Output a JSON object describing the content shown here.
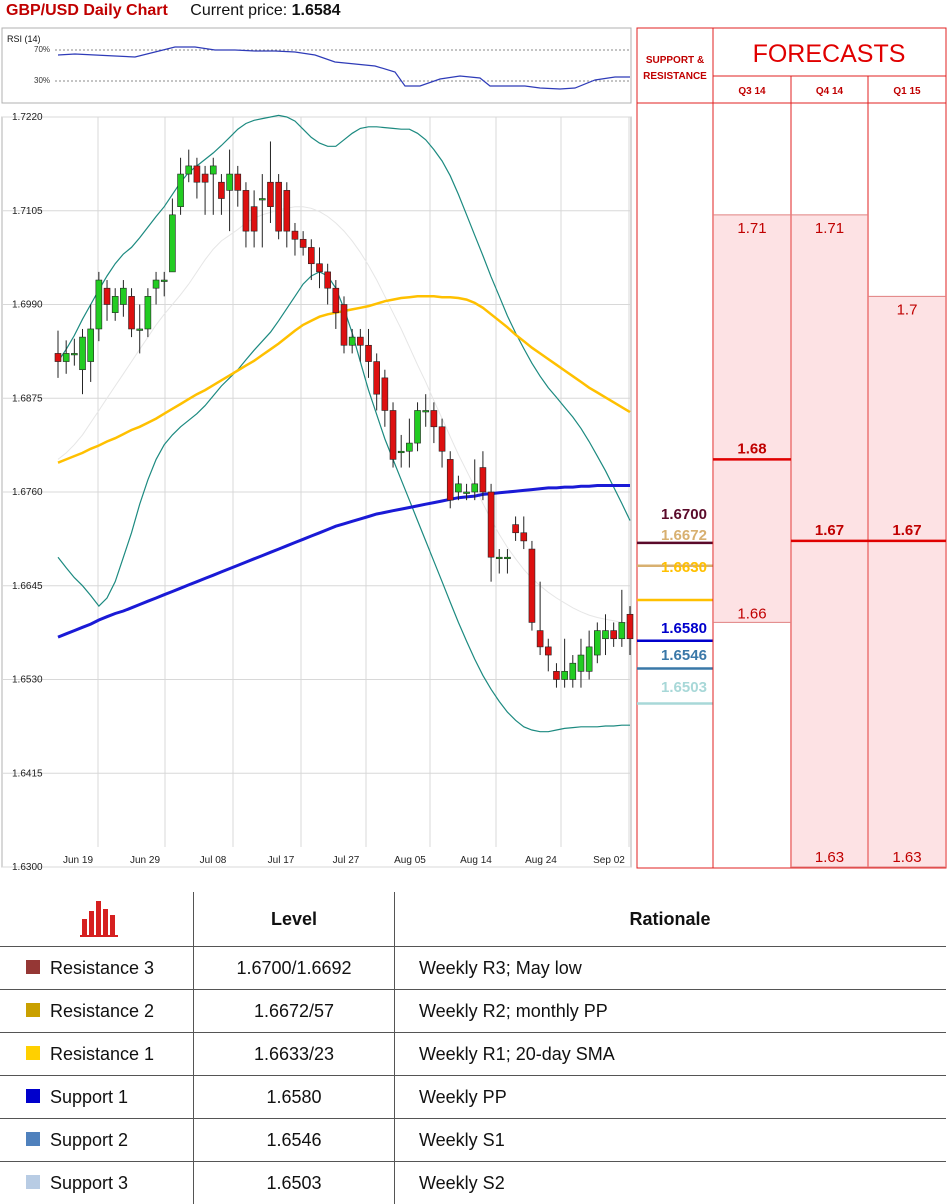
{
  "header": {
    "title": "GBP/USD Daily Chart",
    "price_label": "Current price:",
    "price": "1.6584"
  },
  "rsi": {
    "title": "RSI (14)",
    "ticks": [
      "70%",
      "30%"
    ]
  },
  "chart_data": {
    "type": "candlestick",
    "yticks": [
      "1.7220",
      "1.7105",
      "1.6990",
      "1.6875",
      "1.6760",
      "1.6645",
      "1.6530",
      "1.6415",
      "1.6300"
    ],
    "ylim": [
      1.63,
      1.722
    ],
    "xticks": [
      "Jun 19",
      "Jun 29",
      "Jul 08",
      "Jul 17",
      "Jul 27",
      "Aug 05",
      "Aug 14",
      "Aug 24",
      "Sep 02"
    ],
    "candles": [
      [
        1.693,
        1.692,
        1.6958,
        1.69
      ],
      [
        1.692,
        1.693,
        1.6946,
        1.6905
      ],
      [
        1.693,
        1.693,
        1.6948,
        1.6915
      ],
      [
        1.691,
        1.695,
        1.696,
        1.688
      ],
      [
        1.692,
        1.696,
        1.699,
        1.6895
      ],
      [
        1.696,
        1.702,
        1.703,
        1.6945
      ],
      [
        1.701,
        1.699,
        1.702,
        1.697
      ],
      [
        1.698,
        1.7,
        1.701,
        1.697
      ],
      [
        1.699,
        1.701,
        1.702,
        1.6975
      ],
      [
        1.7,
        1.696,
        1.701,
        1.695
      ],
      [
        1.696,
        1.696,
        1.699,
        1.693
      ],
      [
        1.696,
        1.7,
        1.701,
        1.695
      ],
      [
        1.701,
        1.702,
        1.703,
        1.699
      ],
      [
        1.702,
        1.702,
        1.703,
        1.7
      ],
      [
        1.703,
        1.71,
        1.712,
        1.703
      ],
      [
        1.711,
        1.715,
        1.717,
        1.71
      ],
      [
        1.715,
        1.716,
        1.718,
        1.714
      ],
      [
        1.716,
        1.714,
        1.717,
        1.712
      ],
      [
        1.715,
        1.714,
        1.716,
        1.71
      ],
      [
        1.715,
        1.716,
        1.717,
        1.71
      ],
      [
        1.714,
        1.712,
        1.715,
        1.71
      ],
      [
        1.713,
        1.715,
        1.718,
        1.708
      ],
      [
        1.715,
        1.713,
        1.716,
        1.711
      ],
      [
        1.713,
        1.708,
        1.714,
        1.706
      ],
      [
        1.711,
        1.708,
        1.713,
        1.706
      ],
      [
        1.712,
        1.712,
        1.715,
        1.706
      ],
      [
        1.714,
        1.711,
        1.719,
        1.709
      ],
      [
        1.714,
        1.708,
        1.715,
        1.707
      ],
      [
        1.713,
        1.708,
        1.714,
        1.706
      ],
      [
        1.708,
        1.707,
        1.709,
        1.705
      ],
      [
        1.707,
        1.706,
        1.708,
        1.705
      ],
      [
        1.706,
        1.704,
        1.707,
        1.702
      ],
      [
        1.704,
        1.703,
        1.706,
        1.701
      ],
      [
        1.703,
        1.701,
        1.704,
        1.699
      ],
      [
        1.701,
        1.698,
        1.702,
        1.696
      ],
      [
        1.699,
        1.694,
        1.7,
        1.693
      ],
      [
        1.694,
        1.695,
        1.696,
        1.693
      ],
      [
        1.695,
        1.694,
        1.696,
        1.692
      ],
      [
        1.694,
        1.692,
        1.696,
        1.69
      ],
      [
        1.692,
        1.688,
        1.693,
        1.686
      ],
      [
        1.69,
        1.686,
        1.691,
        1.684
      ],
      [
        1.686,
        1.68,
        1.687,
        1.679
      ],
      [
        1.681,
        1.681,
        1.683,
        1.679
      ],
      [
        1.681,
        1.682,
        1.685,
        1.679
      ],
      [
        1.682,
        1.686,
        1.687,
        1.681
      ],
      [
        1.686,
        1.686,
        1.688,
        1.684
      ],
      [
        1.686,
        1.684,
        1.687,
        1.682
      ],
      [
        1.684,
        1.681,
        1.685,
        1.679
      ],
      [
        1.68,
        1.675,
        1.681,
        1.674
      ],
      [
        1.676,
        1.677,
        1.678,
        1.675
      ],
      [
        1.676,
        1.676,
        1.677,
        1.675
      ],
      [
        1.676,
        1.677,
        1.68,
        1.675
      ],
      [
        1.679,
        1.676,
        1.681,
        1.675
      ],
      [
        1.676,
        1.668,
        1.677,
        1.665
      ],
      [
        1.668,
        1.668,
        1.669,
        1.666
      ],
      [
        1.668,
        1.668,
        1.669,
        1.666
      ],
      [
        1.672,
        1.671,
        1.673,
        1.67
      ],
      [
        1.671,
        1.67,
        1.673,
        1.669
      ],
      [
        1.669,
        1.66,
        1.67,
        1.659
      ],
      [
        1.659,
        1.657,
        1.665,
        1.656
      ],
      [
        1.657,
        1.656,
        1.658,
        1.654
      ],
      [
        1.654,
        1.653,
        1.655,
        1.652
      ],
      [
        1.653,
        1.654,
        1.658,
        1.652
      ],
      [
        1.653,
        1.655,
        1.656,
        1.652
      ],
      [
        1.654,
        1.656,
        1.658,
        1.652
      ],
      [
        1.654,
        1.657,
        1.659,
        1.653
      ],
      [
        1.656,
        1.659,
        1.66,
        1.655
      ],
      [
        1.658,
        1.659,
        1.661,
        1.656
      ],
      [
        1.659,
        1.658,
        1.66,
        1.657
      ],
      [
        1.658,
        1.66,
        1.664,
        1.657
      ],
      [
        1.661,
        1.658,
        1.662,
        1.656
      ]
    ],
    "sma_200": [
      1.6582,
      1.6586,
      1.659,
      1.6594,
      1.6598,
      1.6603,
      1.6607,
      1.6611,
      1.6614,
      1.6618,
      1.6622,
      1.6626,
      1.663,
      1.6634,
      1.6638,
      1.6642,
      1.6646,
      1.665,
      1.6654,
      1.6658,
      1.6662,
      1.6666,
      1.667,
      1.6674,
      1.6678,
      1.6682,
      1.6686,
      1.669,
      1.6694,
      1.6698,
      1.6702,
      1.6706,
      1.671,
      1.6714,
      1.6718,
      1.6721,
      1.6724,
      1.6727,
      1.673,
      1.6733,
      1.6735,
      1.6737,
      1.6739,
      1.6741,
      1.6743,
      1.6745,
      1.6747,
      1.6749,
      1.6751,
      1.6753,
      1.6754,
      1.6755,
      1.6757,
      1.6758,
      1.6759,
      1.676,
      1.6761,
      1.6762,
      1.6763,
      1.6764,
      1.6765,
      1.6765,
      1.6766,
      1.6766,
      1.6767,
      1.6767,
      1.6768,
      1.6768,
      1.6768,
      1.6768,
      1.6768
    ],
    "sma_100": [
      1.6796,
      1.68,
      1.6804,
      1.6808,
      1.6813,
      1.6817,
      1.6822,
      1.6826,
      1.6831,
      1.6836,
      1.684,
      1.6845,
      1.685,
      1.6856,
      1.6862,
      1.6868,
      1.6874,
      1.688,
      1.6885,
      1.6891,
      1.6897,
      1.6903,
      1.6909,
      1.6915,
      1.6921,
      1.6928,
      1.6935,
      1.6942,
      1.695,
      1.6958,
      1.6965,
      1.697,
      1.6975,
      1.6978,
      1.698,
      1.6982,
      1.6984,
      1.6986,
      1.6988,
      1.6991,
      1.6994,
      1.6996,
      1.6998,
      1.6999,
      1.7,
      1.7,
      1.7,
      1.6999,
      1.6999,
      1.6998,
      1.6996,
      1.6992,
      1.6986,
      1.6978,
      1.697,
      1.6962,
      1.6953,
      1.6945,
      1.6937,
      1.693,
      1.6923,
      1.6916,
      1.6909,
      1.6902,
      1.6895,
      1.6888,
      1.6882,
      1.6876,
      1.687,
      1.6864,
      1.6858
    ],
    "boll_mid": [
      1.68,
      1.6808,
      1.6818,
      1.683,
      1.6845,
      1.686,
      1.6875,
      1.689,
      1.6905,
      1.692,
      1.6935,
      1.695,
      1.6965,
      1.6978,
      1.699,
      1.7002,
      1.7015,
      1.703,
      1.7045,
      1.7058,
      1.7068,
      1.7075,
      1.7082,
      1.709,
      1.7096,
      1.71,
      1.7103,
      1.7106,
      1.7108,
      1.711,
      1.711,
      1.7108,
      1.7104,
      1.7098,
      1.709,
      1.708,
      1.7068,
      1.7054,
      1.7038,
      1.702,
      1.7,
      1.698,
      1.696,
      1.6938,
      1.6916,
      1.6895,
      1.6872,
      1.685,
      1.6828,
      1.6806,
      1.6786,
      1.6766,
      1.6746,
      1.6726,
      1.6708,
      1.6692,
      1.6678,
      1.6665,
      1.6654,
      1.6645,
      1.6637,
      1.663,
      1.6624,
      1.6618,
      1.6613,
      1.6609,
      1.6606,
      1.6604,
      1.6602,
      1.66,
      1.6599
    ],
    "boll_upper": [
      1.692,
      1.6935,
      1.6952,
      1.6972,
      1.699,
      1.7008,
      1.7025,
      1.704,
      1.7052,
      1.706,
      1.7072,
      1.7085,
      1.7098,
      1.711,
      1.7125,
      1.714,
      1.7152,
      1.716,
      1.7168,
      1.7176,
      1.7185,
      1.7195,
      1.7205,
      1.7212,
      1.7216,
      1.7218,
      1.722,
      1.7222,
      1.722,
      1.7215,
      1.7205,
      1.7195,
      1.7188,
      1.7184,
      1.7184,
      1.7192,
      1.72,
      1.7206,
      1.7208,
      1.7208,
      1.7207,
      1.7206,
      1.7205,
      1.7205,
      1.72,
      1.7192,
      1.718,
      1.7166,
      1.7148,
      1.7125,
      1.71,
      1.7075,
      1.705,
      1.7024,
      1.7,
      1.6976,
      1.6955,
      1.6936,
      1.6918,
      1.6902,
      1.6888,
      1.6876,
      1.6864,
      1.6852,
      1.6838,
      1.6822,
      1.6804,
      1.6786,
      1.6766,
      1.6746,
      1.6725
    ],
    "boll_lower": [
      1.668,
      1.6667,
      1.6655,
      1.6645,
      1.6633,
      1.662,
      1.663,
      1.665,
      1.668,
      1.671,
      1.6745,
      1.6775,
      1.68,
      1.6818,
      1.683,
      1.684,
      1.6848,
      1.6856,
      1.6866,
      1.6878,
      1.689,
      1.69,
      1.691,
      1.6922,
      1.6934,
      1.6945,
      1.6956,
      1.697,
      1.6985,
      1.7,
      1.7015,
      1.7025,
      1.703,
      1.7025,
      1.701,
      1.6985,
      1.6955,
      1.692,
      1.6885,
      1.6855,
      1.6825,
      1.68,
      1.6775,
      1.675,
      1.6725,
      1.67,
      1.6675,
      1.665,
      1.6625,
      1.66,
      1.6577,
      1.6555,
      1.6535,
      1.6518,
      1.6503,
      1.649,
      1.648,
      1.6472,
      1.6468,
      1.6466,
      1.6466,
      1.6468,
      1.647,
      1.6471,
      1.6472,
      1.6472,
      1.6472,
      1.6473,
      1.6473,
      1.6474,
      1.6474
    ]
  },
  "levels": [
    {
      "label": "1.6700",
      "value": 1.67,
      "color": "#5a0a2a"
    },
    {
      "label": "1.6672",
      "value": 1.6672,
      "color": "#d8b070"
    },
    {
      "label": "1.6630",
      "value": 1.663,
      "color": "#ffc000"
    },
    {
      "label": "1.6580",
      "value": 1.658,
      "color": "#0000cc"
    },
    {
      "label": "1.6546",
      "value": 1.6546,
      "color": "#3a78a8"
    },
    {
      "label": "1.6503",
      "value": 1.6503,
      "color": "#a8d8d8"
    }
  ],
  "support_title": [
    "SUPPORT &",
    "RESISTANCE"
  ],
  "forecasts": {
    "title": "FORECASTS",
    "quarters": [
      {
        "name": "Q3 14",
        "high": "1.71",
        "mid": "1.68",
        "low": "1.66",
        "high_v": 1.71,
        "mid_v": 1.68,
        "low_v": 1.66
      },
      {
        "name": "Q4 14",
        "high": "1.71",
        "mid": "1.67",
        "low": "1.63",
        "high_v": 1.71,
        "mid_v": 1.67,
        "low_v": 1.63
      },
      {
        "name": "Q1 15",
        "high": "1.7",
        "mid": "1.67",
        "low": "1.63",
        "high_v": 1.7,
        "mid_v": 1.67,
        "low_v": 1.63
      }
    ]
  },
  "table": {
    "headers": [
      "Level",
      "Rationale"
    ],
    "rows": [
      {
        "name": "Resistance 3",
        "level": "1.6700/1.6692",
        "rationale": "Weekly R3; May low",
        "color": "#953735"
      },
      {
        "name": "Resistance 2",
        "level": "1.6672/57",
        "rationale": "Weekly R2; monthly PP",
        "color": "#c9a000"
      },
      {
        "name": "Resistance 1",
        "level": "1.6633/23",
        "rationale": "Weekly R1; 20-day SMA",
        "color": "#ffd000"
      },
      {
        "name": "Support 1",
        "level": "1.6580",
        "rationale": "Weekly PP",
        "color": "#0000cc"
      },
      {
        "name": "Support 2",
        "level": "1.6546",
        "rationale": "Weekly S1",
        "color": "#4f81bd"
      },
      {
        "name": "Support 3",
        "level": "1.6503",
        "rationale": "Weekly S2",
        "color": "#b8cce4"
      }
    ]
  }
}
